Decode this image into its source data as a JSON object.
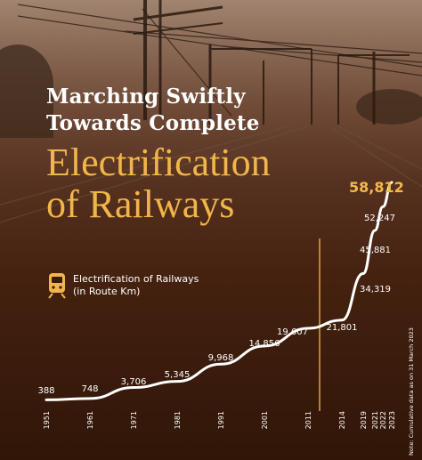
{
  "header": {
    "line1": "Marching Swiftly",
    "line2": "Towards Complete",
    "line3": "Electrification",
    "line4": "of Railways"
  },
  "legend": {
    "label_line1": "Electrification of Railways",
    "label_line2": "(in Route Km)",
    "icon": "train-icon"
  },
  "note": "Note: Cumulative data as on 31 March 2023",
  "colors": {
    "accent": "#f3b94e",
    "line": "#ffffff",
    "background": "#3b1a0e"
  },
  "chart_data": {
    "type": "line",
    "title": "",
    "xlabel": "",
    "ylabel": "",
    "x": [
      "1951",
      "1961",
      "1971",
      "1981",
      "1991",
      "2001",
      "2011",
      "2014",
      "2019",
      "2021",
      "2022",
      "2023"
    ],
    "series": [
      {
        "name": "Electrification of Railways (in Route Km)",
        "values": [
          388,
          748,
          3706,
          5345,
          9968,
          14856,
          19607,
          21801,
          34319,
          45881,
          52247,
          58812
        ],
        "labels": [
          "388",
          "748",
          "3,706",
          "5,345",
          "9,968",
          "14,856",
          "19,607",
          "21,801",
          "34,319",
          "45,881",
          "52,247",
          "58,812"
        ]
      }
    ],
    "ylim": [
      0,
      60000
    ],
    "grid": false,
    "highlight_year": "2014"
  }
}
